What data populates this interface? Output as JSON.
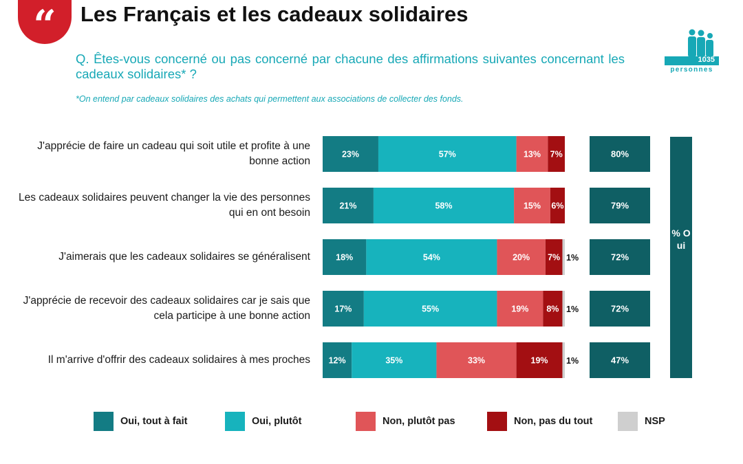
{
  "header": {
    "quote_glyph": "“",
    "title": "Les Français et les cadeaux solidaires",
    "question": "Q. Êtes-vous concerné ou pas concerné par chacune des affirmations suivantes concernant les cadeaux solidaires* ?",
    "footnote": "*On entend par cadeaux solidaires des achats qui permettent aux associations de collecter des fonds.",
    "sample_count": "1035",
    "sample_label": "personnes",
    "people_icon": "people-group-icon"
  },
  "side_label": "% Oui",
  "chart_data": {
    "type": "bar",
    "orientation": "horizontal",
    "stacked": true,
    "value_unit": "%",
    "categories": [
      "J'apprécie de faire un cadeau qui soit utile et profite à une bonne action",
      "Les cadeaux solidaires peuvent changer la vie des personnes qui en ont besoin",
      "J'aimerais que les cadeaux solidaires se généralisent",
      "J'apprécie de recevoir des cadeaux solidaires car je sais que cela participe à une bonne action",
      "Il m'arrive d'offrir des cadeaux solidaires à mes proches"
    ],
    "series": [
      {
        "name": "Oui, tout à fait",
        "color": "#137c84",
        "values": [
          23,
          21,
          18,
          17,
          12
        ]
      },
      {
        "name": "Oui, plutôt",
        "color": "#17b3bd",
        "values": [
          57,
          58,
          54,
          55,
          35
        ]
      },
      {
        "name": "Non, plutôt pas",
        "color": "#e05558",
        "values": [
          13,
          15,
          20,
          19,
          33
        ]
      },
      {
        "name": "Non, pas du tout",
        "color": "#a30f12",
        "values": [
          7,
          6,
          7,
          8,
          19
        ]
      },
      {
        "name": "NSP",
        "color": "#cfcfcf",
        "values": [
          0,
          0,
          1,
          1,
          1
        ]
      }
    ],
    "totals": {
      "color": "#0f5f64",
      "values": [
        80,
        79,
        72,
        72,
        47
      ]
    },
    "legend_position": "bottom",
    "grid": false
  }
}
